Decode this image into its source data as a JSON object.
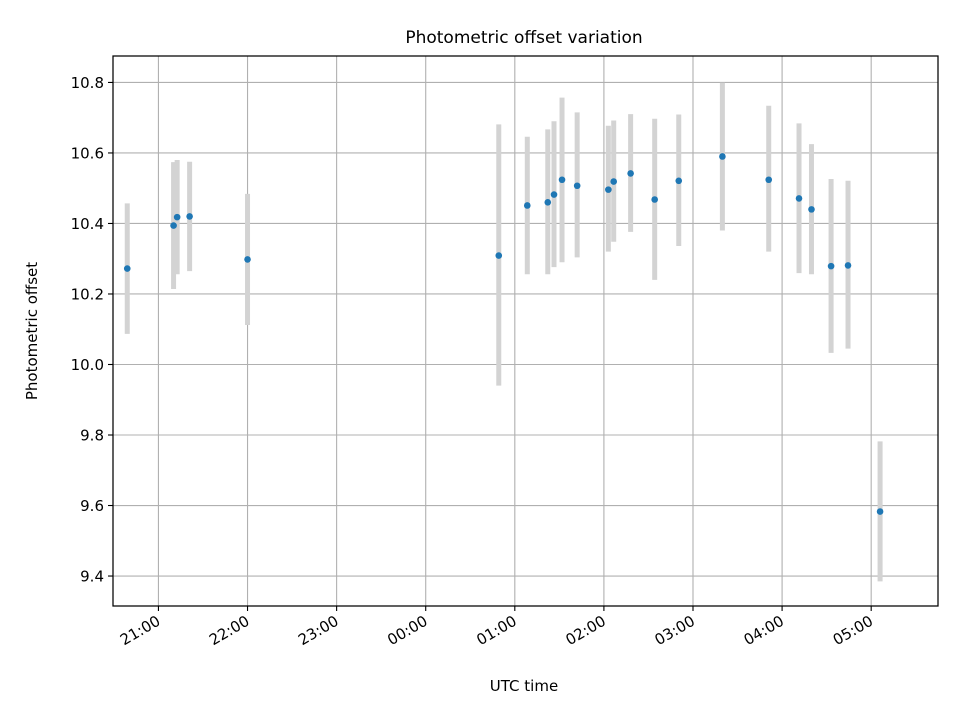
{
  "chart_data": {
    "type": "scatter",
    "title": "Photometric offset variation",
    "xlabel": "UTC time",
    "ylabel": "Photometric offset",
    "x_unit": "hours since 20:00 UTC",
    "xlim": [
      0.49,
      9.75
    ],
    "ylim": [
      9.315,
      10.875
    ],
    "grid": true,
    "x_ticks": [
      {
        "value": 1.0,
        "label": "21:00"
      },
      {
        "value": 2.0,
        "label": "22:00"
      },
      {
        "value": 3.0,
        "label": "23:00"
      },
      {
        "value": 4.0,
        "label": "00:00"
      },
      {
        "value": 5.0,
        "label": "01:00"
      },
      {
        "value": 6.0,
        "label": "02:00"
      },
      {
        "value": 7.0,
        "label": "03:00"
      },
      {
        "value": 8.0,
        "label": "04:00"
      },
      {
        "value": 9.0,
        "label": "05:00"
      }
    ],
    "y_ticks": [
      {
        "value": 9.4,
        "label": "9.4"
      },
      {
        "value": 9.6,
        "label": "9.6"
      },
      {
        "value": 9.8,
        "label": "9.8"
      },
      {
        "value": 10.0,
        "label": "10.0"
      },
      {
        "value": 10.2,
        "label": "10.2"
      },
      {
        "value": 10.4,
        "label": "10.4"
      },
      {
        "value": 10.6,
        "label": "10.6"
      },
      {
        "value": 10.8,
        "label": "10.8"
      }
    ],
    "colors": {
      "point": "#1f77b4",
      "errorbar": "#d3d3d3",
      "grid": "#b0b0b0"
    },
    "points": [
      {
        "x": 0.65,
        "y": 10.272,
        "ylo": 10.087,
        "yhi": 10.457
      },
      {
        "x": 1.17,
        "y": 10.394,
        "ylo": 10.214,
        "yhi": 10.574
      },
      {
        "x": 1.21,
        "y": 10.418,
        "ylo": 10.256,
        "yhi": 10.58
      },
      {
        "x": 1.35,
        "y": 10.42,
        "ylo": 10.265,
        "yhi": 10.575
      },
      {
        "x": 2.0,
        "y": 10.298,
        "ylo": 10.112,
        "yhi": 10.484
      },
      {
        "x": 4.82,
        "y": 10.309,
        "ylo": 9.94,
        "yhi": 10.681
      },
      {
        "x": 5.14,
        "y": 10.451,
        "ylo": 10.256,
        "yhi": 10.646
      },
      {
        "x": 5.37,
        "y": 10.46,
        "ylo": 10.256,
        "yhi": 10.667
      },
      {
        "x": 5.44,
        "y": 10.482,
        "ylo": 10.276,
        "yhi": 10.69
      },
      {
        "x": 5.53,
        "y": 10.524,
        "ylo": 10.29,
        "yhi": 10.757
      },
      {
        "x": 5.7,
        "y": 10.507,
        "ylo": 10.304,
        "yhi": 10.715
      },
      {
        "x": 6.05,
        "y": 10.496,
        "ylo": 10.32,
        "yhi": 10.677
      },
      {
        "x": 6.11,
        "y": 10.519,
        "ylo": 10.348,
        "yhi": 10.692
      },
      {
        "x": 6.3,
        "y": 10.542,
        "ylo": 10.376,
        "yhi": 10.71
      },
      {
        "x": 6.57,
        "y": 10.468,
        "ylo": 10.24,
        "yhi": 10.697
      },
      {
        "x": 6.84,
        "y": 10.521,
        "ylo": 10.336,
        "yhi": 10.709
      },
      {
        "x": 7.33,
        "y": 10.59,
        "ylo": 10.38,
        "yhi": 10.799
      },
      {
        "x": 7.85,
        "y": 10.524,
        "ylo": 10.32,
        "yhi": 10.734
      },
      {
        "x": 8.19,
        "y": 10.471,
        "ylo": 10.259,
        "yhi": 10.684
      },
      {
        "x": 8.33,
        "y": 10.44,
        "ylo": 10.256,
        "yhi": 10.625
      },
      {
        "x": 8.55,
        "y": 10.279,
        "ylo": 10.033,
        "yhi": 10.526
      },
      {
        "x": 8.74,
        "y": 10.281,
        "ylo": 10.045,
        "yhi": 10.521
      },
      {
        "x": 9.1,
        "y": 9.583,
        "ylo": 9.385,
        "yhi": 9.782
      }
    ]
  }
}
